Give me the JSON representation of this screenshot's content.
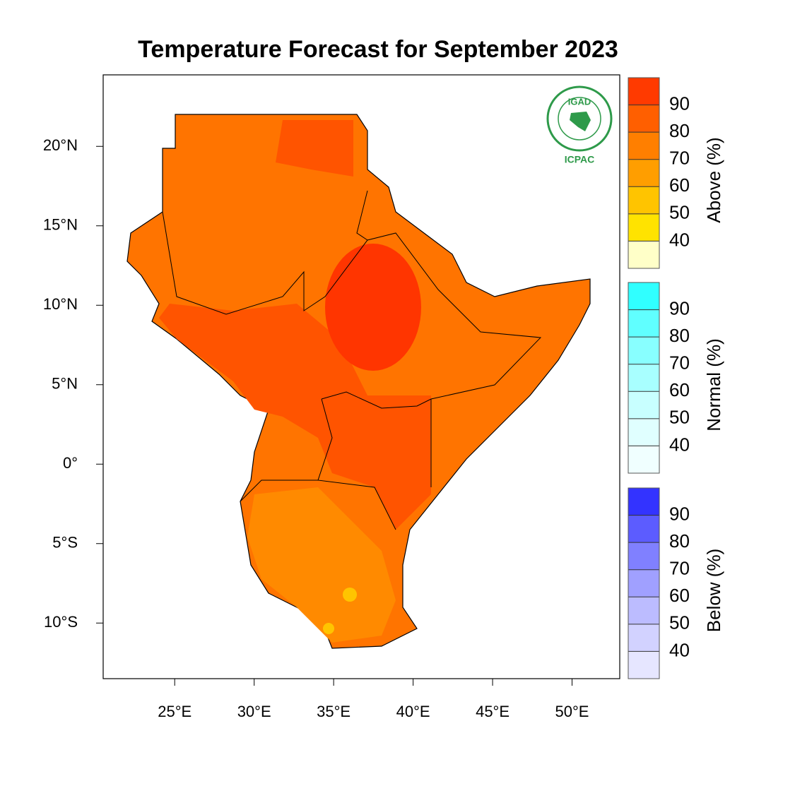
{
  "map": {
    "title": "Temperature Forecast for September 2023",
    "lonlim": [
      20.5,
      53
    ],
    "latlim": [
      -13.5,
      24.5
    ],
    "xticks": [
      {
        "value": 25,
        "label": "25°E"
      },
      {
        "value": 30,
        "label": "30°E"
      },
      {
        "value": 35,
        "label": "35°E"
      },
      {
        "value": 40,
        "label": "40°E"
      },
      {
        "value": 45,
        "label": "45°E"
      },
      {
        "value": 50,
        "label": "50°E"
      }
    ],
    "yticks": [
      {
        "value": 20,
        "label": "20°N"
      },
      {
        "value": 15,
        "label": "15°N"
      },
      {
        "value": 10,
        "label": "10°N"
      },
      {
        "value": 5,
        "label": "5°N"
      },
      {
        "value": 0,
        "label": "0°"
      },
      {
        "value": -5,
        "label": "5°S"
      },
      {
        "value": -10,
        "label": "10°S"
      }
    ],
    "logo": {
      "top": "IGAD",
      "bottom": "ICPAC"
    },
    "legends": [
      {
        "title": "Above (%)",
        "levels": [
          40,
          50,
          60,
          70,
          80,
          90
        ],
        "colors": [
          "#ffffc8",
          "#ffe300",
          "#ffc400",
          "#ff9e00",
          "#ff7f00",
          "#ff5f00",
          "#ff3a00"
        ]
      },
      {
        "title": "Normal (%)",
        "levels": [
          40,
          50,
          60,
          70,
          80,
          90
        ],
        "colors": [
          "#f0ffff",
          "#e0ffff",
          "#c8ffff",
          "#a8ffff",
          "#88ffff",
          "#60ffff",
          "#30ffff"
        ]
      },
      {
        "title": "Below (%)",
        "levels": [
          40,
          50,
          60,
          70,
          80,
          90
        ],
        "colors": [
          "#e6e6ff",
          "#d2d2ff",
          "#bcbcff",
          "#a0a0ff",
          "#8080ff",
          "#5c5cff",
          "#3333ff"
        ]
      }
    ]
  }
}
